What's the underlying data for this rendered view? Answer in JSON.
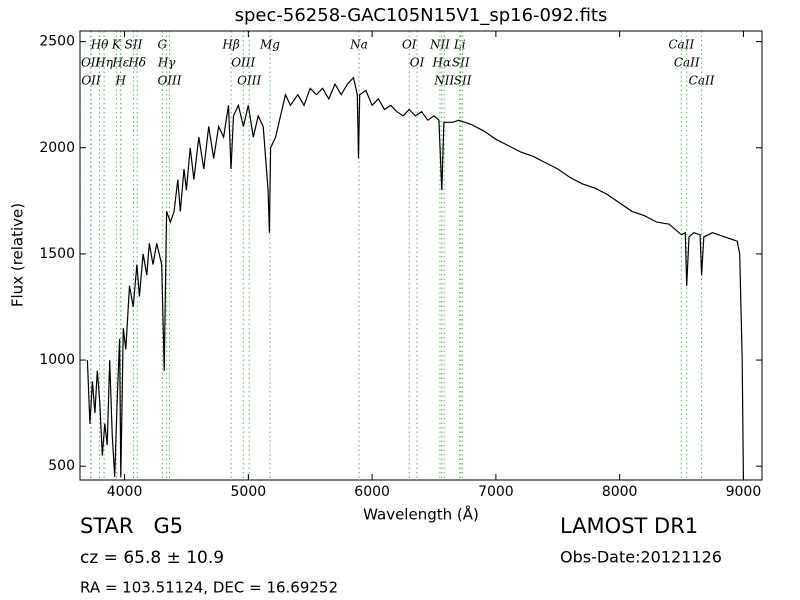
{
  "chart_data": {
    "type": "line",
    "title": "spec-56258-GAC105N15V1_sp16-092.fits",
    "x_label": "Wavelength (Å)",
    "y_label": "Flux (relative)",
    "color": "#000000",
    "line_color": "#55bb55",
    "x": [
      3700,
      3720,
      3740,
      3760,
      3780,
      3800,
      3820,
      3840,
      3860,
      3880,
      3900,
      3920,
      3940,
      3960,
      3970,
      3990,
      4010,
      4040,
      4070,
      4100,
      4120,
      4150,
      4180,
      4200,
      4230,
      4260,
      4300,
      4320,
      4340,
      4370,
      4400,
      4430,
      4450,
      4480,
      4500,
      4530,
      4560,
      4600,
      4640,
      4680,
      4720,
      4760,
      4800,
      4840,
      4860,
      4880,
      4920,
      4960,
      5000,
      5040,
      5080,
      5120,
      5160,
      5170,
      5180,
      5220,
      5260,
      5300,
      5340,
      5400,
      5450,
      5500,
      5550,
      5600,
      5650,
      5700,
      5750,
      5800,
      5850,
      5880,
      5890,
      5900,
      5950,
      6000,
      6050,
      6100,
      6150,
      6200,
      6250,
      6300,
      6350,
      6400,
      6450,
      6500,
      6540,
      6563,
      6580,
      6650,
      6700,
      6800,
      6900,
      7000,
      7100,
      7200,
      7300,
      7400,
      7500,
      7600,
      7700,
      7800,
      7900,
      8000,
      8100,
      8200,
      8300,
      8400,
      8500,
      8530,
      8542,
      8560,
      8600,
      8650,
      8662,
      8680,
      8750,
      8850,
      8950,
      8970,
      8990,
      9000
    ],
    "values": [
      1000,
      700,
      900,
      750,
      950,
      800,
      550,
      700,
      600,
      1000,
      650,
      450,
      800,
      1100,
      450,
      1150,
      1050,
      1350,
      1250,
      1450,
      1300,
      1500,
      1400,
      1550,
      1450,
      1550,
      1450,
      950,
      1700,
      1650,
      1700,
      1850,
      1700,
      1900,
      1800,
      2000,
      1850,
      2050,
      1900,
      2100,
      1950,
      2100,
      2050,
      2200,
      1900,
      2150,
      2200,
      2100,
      2200,
      2050,
      2150,
      2100,
      1800,
      1600,
      2000,
      2050,
      2150,
      2250,
      2200,
      2250,
      2200,
      2280,
      2250,
      2280,
      2230,
      2300,
      2250,
      2300,
      2330,
      2250,
      1950,
      2250,
      2270,
      2200,
      2230,
      2180,
      2200,
      2170,
      2150,
      2180,
      2150,
      2170,
      2130,
      2150,
      2130,
      1800,
      2120,
      2120,
      2130,
      2110,
      2080,
      2040,
      2010,
      1980,
      1960,
      1930,
      1900,
      1860,
      1830,
      1810,
      1780,
      1740,
      1700,
      1680,
      1650,
      1640,
      1590,
      1600,
      1350,
      1580,
      1600,
      1590,
      1400,
      1580,
      1600,
      1580,
      1560,
      1500,
      1000,
      440
    ],
    "lines": [
      {
        "name": "Hθ",
        "x": 3798
      },
      {
        "name": "OII",
        "x": 3726
      },
      {
        "name": "OII",
        "x": 3729
      },
      {
        "name": "Hη",
        "x": 3835
      },
      {
        "name": "K",
        "x": 3934
      },
      {
        "name": "Hε",
        "x": 3970
      },
      {
        "name": "H",
        "x": 3969
      },
      {
        "name": "SII",
        "x": 4072
      },
      {
        "name": "Hδ",
        "x": 4102
      },
      {
        "name": "G",
        "x": 4305
      },
      {
        "name": "Hγ",
        "x": 4340
      },
      {
        "name": "OIII",
        "x": 4363
      },
      {
        "name": "Hβ",
        "x": 4861
      },
      {
        "name": "OIII",
        "x": 4959
      },
      {
        "name": "OIII",
        "x": 5007
      },
      {
        "name": "Mg",
        "x": 5175
      },
      {
        "name": "Na",
        "x": 5894
      },
      {
        "name": "OI",
        "x": 6300
      },
      {
        "name": "OI",
        "x": 6363
      },
      {
        "name": "NII",
        "x": 6548
      },
      {
        "name": "Hα",
        "x": 6563
      },
      {
        "name": "NII",
        "x": 6583
      },
      {
        "name": "Li",
        "x": 6708
      },
      {
        "name": "SII",
        "x": 6716
      },
      {
        "name": "SII",
        "x": 6731
      },
      {
        "name": "CaII",
        "x": 8498
      },
      {
        "name": "CaII",
        "x": 8542
      },
      {
        "name": "CaII",
        "x": 8662
      }
    ],
    "xlim": [
      3640,
      9150
    ],
    "ylim": [
      435,
      2550
    ],
    "xticks": [
      4000,
      5000,
      6000,
      7000,
      8000,
      9000
    ],
    "yticks": [
      500,
      1000,
      1500,
      2000,
      2500
    ],
    "grid": false,
    "info": {
      "class": "STAR   G5",
      "cz": "cz = 65.8 ± 10.9",
      "coords": "RA = 103.51124, DEC = 16.69252",
      "survey": "LAMOST DR1",
      "date": "Obs-Date:20121126"
    }
  }
}
